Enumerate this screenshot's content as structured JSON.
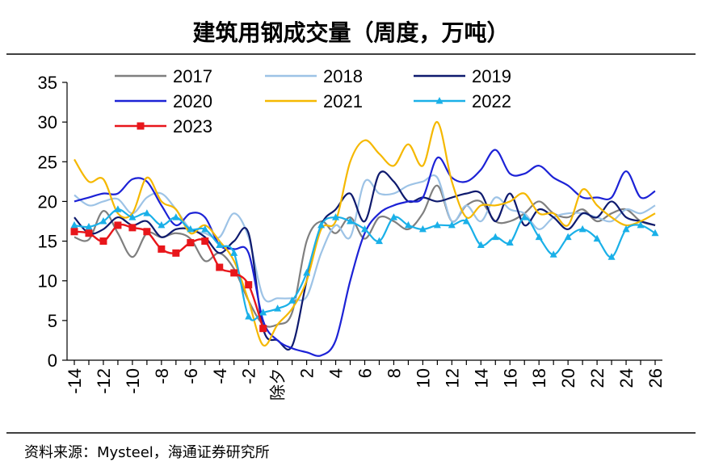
{
  "chart_data": {
    "type": "line",
    "title": "建筑用钢成交量（周度，万吨）",
    "source": "资料来源：Mysteel，海通证券研究所",
    "xlabel": "",
    "ylabel": "",
    "ylim": [
      0,
      35
    ],
    "yticks": [
      "0",
      "5",
      "10",
      "15",
      "20",
      "25",
      "30",
      "35"
    ],
    "xticks": [
      "-14",
      "-12",
      "-10",
      "-8",
      "-6",
      "-4",
      "-2",
      "除夕",
      "2",
      "4",
      "6",
      "8",
      "10",
      "12",
      "14",
      "16",
      "18",
      "20",
      "22",
      "24",
      "26"
    ],
    "x_note": "x = weeks relative to Chinese New Year's Eve (0 = 除夕)",
    "legend_position": "top",
    "grid": false,
    "series": [
      {
        "name": "2017",
        "color": "#7f7f7f",
        "marker": "none",
        "x_start": -14,
        "values": [
          15.5,
          15.2,
          18.8,
          16.0,
          13.0,
          16.0,
          15.5,
          16.0,
          15.3,
          12.5,
          13.5,
          11.5,
          7.5,
          4.5,
          4.5,
          6.0,
          15.0,
          17.5,
          16.0,
          18.0,
          15.3,
          18.0,
          17.5,
          16.5,
          18.5,
          22.0,
          17.5,
          19.5,
          20.0,
          17.5,
          17.5,
          18.5,
          20.0,
          18.5,
          18.0,
          19.0,
          17.5,
          18.5,
          19.0,
          17.5,
          17.0
        ]
      },
      {
        "name": "2018",
        "color": "#9dc3e6",
        "marker": "none",
        "x_start": -14,
        "values": [
          20.8,
          19.5,
          20.0,
          20.3,
          18.5,
          20.5,
          21.0,
          19.0,
          16.5,
          16.0,
          15.5,
          18.5,
          15.5,
          8.0,
          7.8,
          7.8,
          8.0,
          13.5,
          17.0,
          15.5,
          22.5,
          21.0,
          21.0,
          22.0,
          22.5,
          23.0,
          17.5,
          19.5,
          17.5,
          20.5,
          19.0,
          18.5,
          16.5,
          18.0,
          18.5,
          18.5,
          18.0,
          17.5,
          19.0,
          18.5,
          19.5
        ]
      },
      {
        "name": "2019",
        "color": "#0e1a6e",
        "marker": "none",
        "x_start": -14,
        "values": [
          18.0,
          16.0,
          16.5,
          18.0,
          17.0,
          17.5,
          15.5,
          16.5,
          16.5,
          15.5,
          13.5,
          15.0,
          16.0,
          4.0,
          2.5,
          1.8,
          10.0,
          17.0,
          19.0,
          21.0,
          17.5,
          23.5,
          22.5,
          20.0,
          20.5,
          20.0,
          20.5,
          21.0,
          21.0,
          17.5,
          21.0,
          17.0,
          19.0,
          18.0,
          16.5,
          18.5,
          18.0,
          20.0,
          18.0,
          17.5,
          17.0
        ]
      },
      {
        "name": "2020",
        "color": "#1c22d6",
        "marker": "none",
        "x_start": -14,
        "values": [
          20.0,
          20.5,
          21.0,
          21.0,
          22.8,
          22.5,
          19.5,
          17.0,
          18.5,
          18.0,
          14.5,
          14.0,
          13.5,
          5.0,
          2.5,
          1.5,
          1.0,
          0.6,
          2.5,
          10.0,
          16.0,
          18.5,
          19.5,
          20.0,
          20.5,
          25.5,
          23.0,
          22.5,
          24.0,
          26.5,
          23.5,
          23.5,
          24.5,
          23.0,
          22.0,
          20.5,
          20.5,
          20.5,
          23.8,
          20.5,
          21.3
        ]
      },
      {
        "name": "2021",
        "color": "#f5b800",
        "marker": "none",
        "x_start": -14,
        "values": [
          25.3,
          22.5,
          22.8,
          18.5,
          18.5,
          23.0,
          20.0,
          19.0,
          16.0,
          17.0,
          15.0,
          12.5,
          7.5,
          1.9,
          4.5,
          6.5,
          10.0,
          16.5,
          17.5,
          25.0,
          27.7,
          26.0,
          24.5,
          27.2,
          24.5,
          30.0,
          22.5,
          18.0,
          19.5,
          19.5,
          20.0,
          21.0,
          18.5,
          18.5,
          17.0,
          21.5,
          19.5,
          18.0,
          17.0,
          17.5,
          18.5
        ]
      },
      {
        "name": "2022",
        "color": "#1ab0e8",
        "marker": "triangle",
        "x_start": -14,
        "values": [
          17.0,
          16.8,
          17.5,
          19.0,
          18.0,
          18.5,
          17.0,
          18.0,
          16.5,
          16.5,
          14.5,
          13.5,
          5.5,
          6.0,
          6.5,
          7.5,
          11.0,
          17.0,
          18.0,
          17.5,
          16.5,
          15.0,
          18.0,
          17.0,
          16.5,
          17.0,
          17.0,
          17.5,
          14.5,
          15.5,
          14.8,
          18.0,
          15.5,
          13.3,
          15.5,
          16.5,
          15.3,
          13.0,
          16.5,
          17.0,
          16.0
        ]
      },
      {
        "name": "2023",
        "color": "#e8161b",
        "marker": "square",
        "x_start": -14,
        "values": [
          16.2,
          16.0,
          15.0,
          17.0,
          16.7,
          16.2,
          14.0,
          13.5,
          14.8,
          15.0,
          11.7,
          11.0,
          9.5,
          4.0
        ]
      }
    ]
  }
}
